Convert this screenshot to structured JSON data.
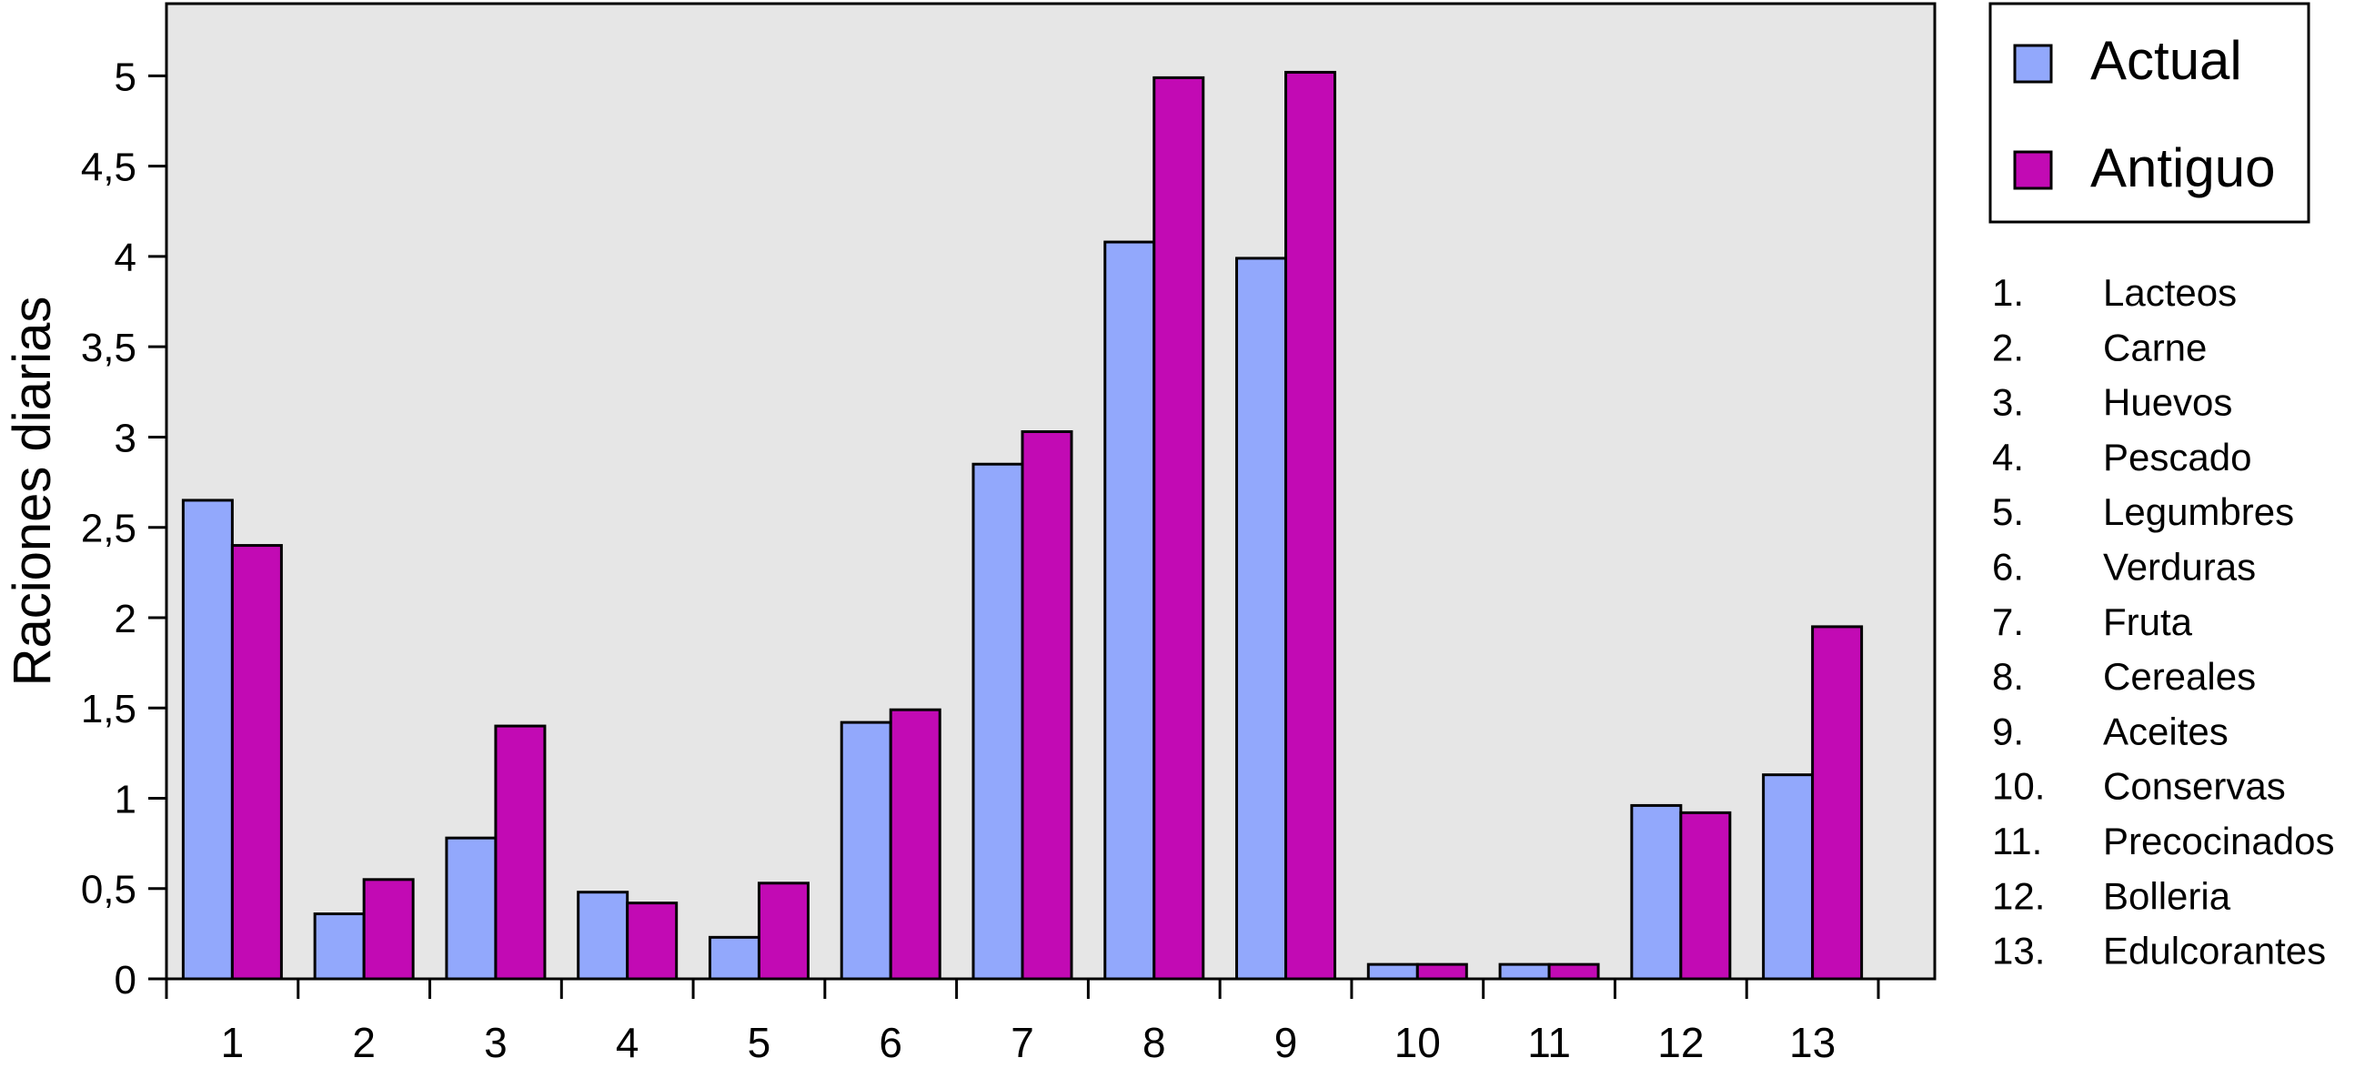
{
  "chart_data": {
    "type": "bar",
    "ylabel": "Raciones diarias",
    "xlabel": "",
    "ylim": [
      0,
      5.4
    ],
    "yticks": [
      {
        "value": 0,
        "label": "0"
      },
      {
        "value": 0.5,
        "label": "0,5"
      },
      {
        "value": 1,
        "label": "1"
      },
      {
        "value": 1.5,
        "label": "1,5"
      },
      {
        "value": 2,
        "label": "2"
      },
      {
        "value": 2.5,
        "label": "2,5"
      },
      {
        "value": 3,
        "label": "3"
      },
      {
        "value": 3.5,
        "label": "3,5"
      },
      {
        "value": 4,
        "label": "4"
      },
      {
        "value": 4.5,
        "label": "4,5"
      },
      {
        "value": 5,
        "label": "5"
      }
    ],
    "categories": [
      "1",
      "2",
      "3",
      "4",
      "5",
      "6",
      "7",
      "8",
      "9",
      "10",
      "11",
      "12",
      "13"
    ],
    "series": [
      {
        "name": "Actual",
        "color": "#92a8fc",
        "values": [
          2.65,
          0.36,
          0.78,
          0.48,
          0.23,
          1.42,
          2.85,
          4.08,
          3.99,
          0.08,
          0.08,
          0.96,
          1.13
        ]
      },
      {
        "name": "Antiguo",
        "color": "#c20ab4",
        "values": [
          2.4,
          0.55,
          1.4,
          0.42,
          0.53,
          1.49,
          3.03,
          4.99,
          5.02,
          0.08,
          0.08,
          0.92,
          1.95
        ]
      }
    ],
    "grid": false,
    "plot_background": "#e6e6e6",
    "legend_position": "right",
    "category_key": [
      {
        "num": "1.",
        "name": "Lacteos"
      },
      {
        "num": "2.",
        "name": "Carne"
      },
      {
        "num": "3.",
        "name": "Huevos"
      },
      {
        "num": "4.",
        "name": "Pescado"
      },
      {
        "num": "5.",
        "name": "Legumbres"
      },
      {
        "num": "6.",
        "name": "Verduras"
      },
      {
        "num": "7.",
        "name": "Fruta"
      },
      {
        "num": "8.",
        "name": "Cereales"
      },
      {
        "num": "9.",
        "name": "Aceites"
      },
      {
        "num": "10.",
        "name": "Conservas"
      },
      {
        "num": "11.",
        "name": "Precocinados"
      },
      {
        "num": "12.",
        "name": "Bolleria"
      },
      {
        "num": "13.",
        "name": "Edulcorantes"
      }
    ]
  }
}
